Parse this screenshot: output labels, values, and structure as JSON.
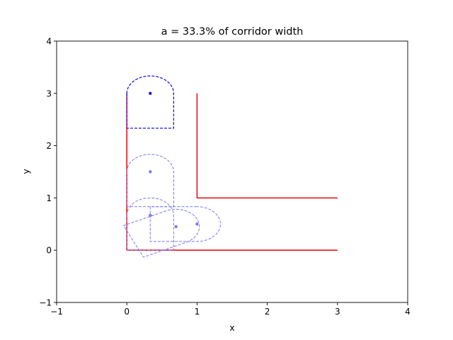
{
  "chart_data": {
    "type": "line",
    "title": "a = 33.3% of corridor width",
    "xlabel": "x",
    "ylabel": "y",
    "xlim": [
      -1,
      4
    ],
    "ylim": [
      -1,
      4
    ],
    "xticks": [
      -1,
      0,
      1,
      2,
      3,
      4
    ],
    "yticks": [
      -1,
      0,
      1,
      2,
      3,
      4
    ],
    "xtick_labels": [
      "−1",
      "0",
      "1",
      "2",
      "3",
      "4"
    ],
    "ytick_labels": [
      "−1",
      "0",
      "1",
      "2",
      "3",
      "4"
    ],
    "grid": false,
    "colors": {
      "walls": "#e8141c",
      "shape_current": "#1a1ae6",
      "shape_ghost": "#7a7af0",
      "axes": "#000000"
    },
    "walls": [
      {
        "name": "outer-wall",
        "points": [
          [
            0,
            3
          ],
          [
            0,
            0
          ],
          [
            3,
            0
          ]
        ]
      },
      {
        "name": "inner-wall",
        "points": [
          [
            1,
            3
          ],
          [
            1,
            1
          ],
          [
            3,
            1
          ]
        ]
      }
    ],
    "shape": {
      "half_width": 0.3333,
      "rect_depth": 0.6667
    },
    "poses": [
      {
        "name": "pose-start",
        "x": 0.3333,
        "y": 3.0,
        "angle_deg": 0,
        "style": "current"
      },
      {
        "name": "pose-mid-vertical",
        "x": 0.3333,
        "y": 1.5,
        "angle_deg": 0,
        "style": "ghost"
      },
      {
        "name": "pose-corner",
        "x": 0.3333,
        "y": 0.6667,
        "angle_deg": 0,
        "style": "ghost"
      },
      {
        "name": "pose-rotating",
        "x": 0.7,
        "y": 0.45,
        "angle_deg": -65,
        "style": "ghost"
      },
      {
        "name": "pose-horizontal",
        "x": 1.0,
        "y": 0.5,
        "angle_deg": -90,
        "style": "ghost"
      }
    ]
  }
}
